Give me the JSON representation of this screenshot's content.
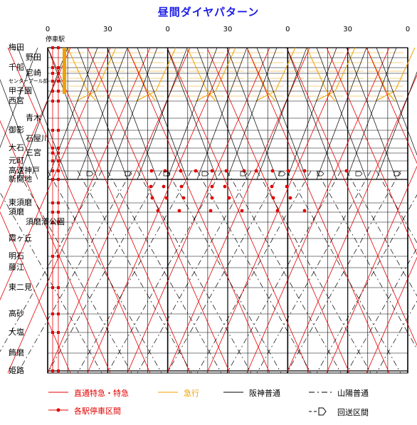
{
  "title": "昼間ダイヤパターン",
  "stop_header": "停車駅",
  "time_ticks": [
    "0",
    "30",
    "0",
    "30",
    "0",
    "30",
    "0"
  ],
  "stations": [
    {
      "name": "梅田"
    },
    {
      "name": "野田"
    },
    {
      "name": "千船"
    },
    {
      "name": "尼崎"
    },
    {
      "name": "センタープール前"
    },
    {
      "name": "甲子園"
    },
    {
      "name": "西宮"
    },
    {
      "name": "青木"
    },
    {
      "name": "御影"
    },
    {
      "name": "石屋川"
    },
    {
      "name": "大石"
    },
    {
      "name": "三宮"
    },
    {
      "name": "元町"
    },
    {
      "name": "高速神戸"
    },
    {
      "name": "新開地"
    },
    {
      "name": "東須磨"
    },
    {
      "name": "須磨"
    },
    {
      "name": "須磨浦公園"
    },
    {
      "name": "霞ヶ丘"
    },
    {
      "name": "明石"
    },
    {
      "name": "藤江"
    },
    {
      "name": "東二見"
    },
    {
      "name": "高砂"
    },
    {
      "name": "大塩"
    },
    {
      "name": "飾磨"
    },
    {
      "name": "姫路"
    }
  ],
  "legend": {
    "limited": "直通特急・特急",
    "express": "急行",
    "hanshin_local": "阪神普通",
    "sanyo_local": "山陽普通",
    "all_stop_section": "各駅停車区間",
    "deadhead": "回送区間"
  },
  "colors": {
    "limited": "#e60000",
    "express": "#f0a000",
    "local": "#000000",
    "title": "#1e1ee6"
  }
}
